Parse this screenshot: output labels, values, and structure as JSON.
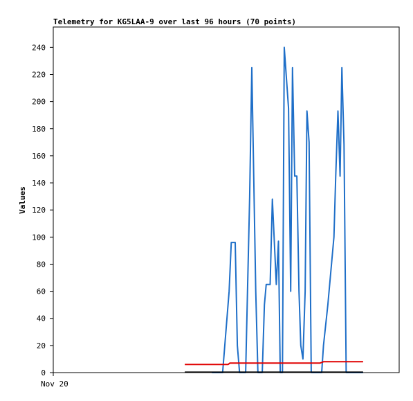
{
  "chart_data": {
    "type": "line",
    "title": "Telemetry for KG5LAA-9 over last 96 hours (70 points)",
    "xlabel": "",
    "ylabel": "Values",
    "ylim": [
      0,
      255
    ],
    "xlim": [
      0,
      96
    ],
    "yticks": [
      "0",
      "20",
      "40",
      "60",
      "80",
      "100",
      "120",
      "140",
      "160",
      "180",
      "200",
      "220",
      "240"
    ],
    "xticks": [
      {
        "label": "Nov 20",
        "x": 0
      }
    ],
    "grid": false,
    "legend": "none",
    "series": [
      {
        "color": "#1f6fc8",
        "points": [
          [
            44,
            0
          ],
          [
            47.0,
            0
          ],
          [
            48.8,
            60
          ],
          [
            49.4,
            96
          ],
          [
            50.5,
            96
          ],
          [
            51.1,
            20
          ],
          [
            51.7,
            0
          ],
          [
            53.4,
            0
          ],
          [
            54.5,
            130
          ],
          [
            55.1,
            225
          ],
          [
            56.2,
            60
          ],
          [
            56.8,
            0
          ],
          [
            58.0,
            0
          ],
          [
            58.6,
            50
          ],
          [
            59.1,
            65
          ],
          [
            60.2,
            65
          ],
          [
            60.8,
            128
          ],
          [
            61.9,
            65
          ],
          [
            62.5,
            97
          ],
          [
            63.0,
            0
          ],
          [
            63.6,
            0
          ],
          [
            64.1,
            240
          ],
          [
            65.3,
            195
          ],
          [
            65.9,
            60
          ],
          [
            66.4,
            225
          ],
          [
            67.0,
            145
          ],
          [
            67.6,
            145
          ],
          [
            68.2,
            60
          ],
          [
            68.7,
            20
          ],
          [
            69.3,
            10
          ],
          [
            69.9,
            60
          ],
          [
            70.4,
            193
          ],
          [
            71.0,
            170
          ],
          [
            71.6,
            0
          ],
          [
            74.5,
            0
          ],
          [
            75.0,
            20
          ],
          [
            76.2,
            50
          ],
          [
            77.9,
            100
          ],
          [
            78.4,
            145
          ],
          [
            79.0,
            193
          ],
          [
            79.6,
            145
          ],
          [
            80.1,
            225
          ],
          [
            80.7,
            168
          ],
          [
            81.3,
            0
          ],
          [
            86,
            0
          ]
        ]
      },
      {
        "color": "#e00000",
        "points": [
          [
            36.5,
            6
          ],
          [
            48.5,
            6
          ],
          [
            49.0,
            7
          ],
          [
            70.0,
            7
          ],
          [
            70.5,
            7
          ],
          [
            74.0,
            7
          ],
          [
            75.0,
            8
          ],
          [
            85.0,
            8
          ],
          [
            86.0,
            8
          ]
        ]
      },
      {
        "color": "#000000",
        "points": [
          [
            36.5,
            0.3
          ],
          [
            86,
            0.3
          ]
        ]
      }
    ]
  }
}
